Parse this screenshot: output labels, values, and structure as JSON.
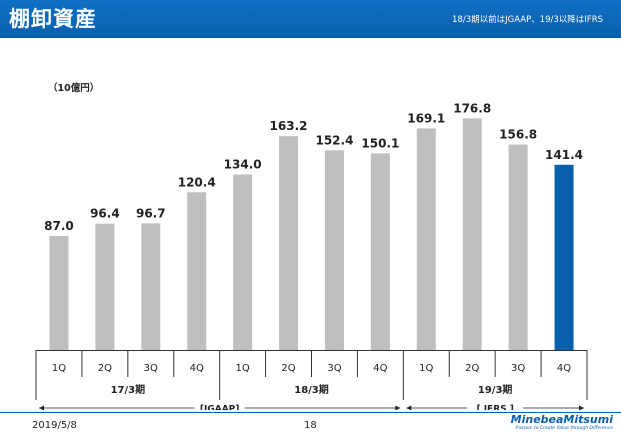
{
  "slide": {
    "title": "棚卸資産",
    "note": "18/3期以前はJGAAP、19/3以降はIFRS",
    "unit": "（10億円）",
    "date": "2019/5/8",
    "page": "18",
    "logo": "MinebeaMitsumi",
    "logo_tagline": "Passion to Create Value through Difference"
  },
  "colors": {
    "header": "#0a5fae",
    "bar": "#bfbfbf",
    "highlight": "#0a5fae"
  },
  "chart_data": {
    "type": "bar",
    "title": "",
    "categories": [
      "1Q",
      "2Q",
      "3Q",
      "4Q",
      "1Q",
      "2Q",
      "3Q",
      "4Q",
      "1Q",
      "2Q",
      "3Q",
      "4Q"
    ],
    "values": [
      87.0,
      96.4,
      96.7,
      120.4,
      134.0,
      163.2,
      152.4,
      150.1,
      169.1,
      176.8,
      156.8,
      141.4
    ],
    "labels": [
      "87.0",
      "96.4",
      "96.7",
      "120.4",
      "134.0",
      "163.2",
      "152.4",
      "150.1",
      "169.1",
      "176.8",
      "156.8",
      "141.4"
    ],
    "highlight_index": 11,
    "ylim": [
      0,
      200
    ],
    "groups": [
      {
        "label": "17/3期",
        "count": 4
      },
      {
        "label": "18/3期",
        "count": 4
      },
      {
        "label": "19/3期",
        "count": 4
      }
    ],
    "standards": [
      {
        "label": "[JGAAP]",
        "count": 8
      },
      {
        "label": "[ IFRS ]",
        "count": 4
      }
    ],
    "grid": false
  }
}
